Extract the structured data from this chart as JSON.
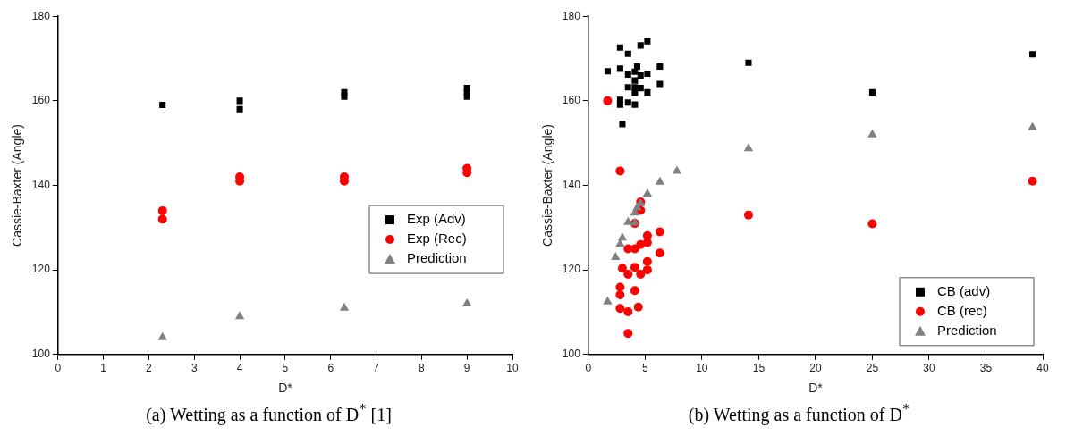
{
  "chart_data": [
    {
      "type": "scatter",
      "xlabel": "D*",
      "ylabel": "Cassie-Baxter (Angle)",
      "xlim": [
        0,
        10
      ],
      "xticks": [
        0,
        1,
        2,
        3,
        4,
        5,
        6,
        7,
        8,
        9,
        10
      ],
      "ylim": [
        100,
        180
      ],
      "yticks": [
        100,
        120,
        140,
        160,
        180
      ],
      "grid": false,
      "legend": "right",
      "annotations": [
        "(a) Wetting as a function of D$^{*}$ [1]"
      ],
      "series": [
        {
          "name": "Exp (Adv)",
          "color": "#000000",
          "marker": "square",
          "x": [
            2.3,
            4,
            4,
            6.3,
            6.3,
            9,
            9,
            9
          ],
          "values": [
            159,
            160,
            158,
            162,
            161,
            163,
            162,
            161
          ]
        },
        {
          "name": "Exp (Rec)",
          "color": "#ff0000",
          "marker": "circle",
          "x": [
            2.3,
            2.3,
            4,
            4,
            6.3,
            6.3,
            9,
            9
          ],
          "values": [
            134,
            132,
            142,
            141,
            142,
            141,
            144,
            143
          ]
        },
        {
          "name": "Prediction",
          "color": "#808080",
          "marker": "triangle",
          "x": [
            2.3,
            4,
            6.3,
            9
          ],
          "values": [
            104,
            109,
            111,
            112
          ]
        }
      ]
    },
    {
      "type": "scatter",
      "xlabel": "D*",
      "ylabel": "Cassie-Baxter (Angle)",
      "xlim": [
        0,
        40
      ],
      "xticks": [
        0,
        5,
        10,
        15,
        20,
        25,
        30,
        35,
        40
      ],
      "ylim": [
        100,
        180
      ],
      "yticks": [
        100,
        120,
        140,
        160,
        180
      ],
      "grid": false,
      "legend": "bottom right",
      "annotations": [
        "(b) Wetting as a function of D$^{*}$"
      ],
      "series": [
        {
          "name": "CB (adv)",
          "color": "#000000",
          "marker": "square",
          "x": [
            1.7,
            2.8,
            2.8,
            3.5,
            4.6,
            5.2,
            2.8,
            2.8,
            3.5,
            4.1,
            3.0,
            3.5,
            4.1,
            4.3,
            4.6,
            5.2,
            6.3,
            6.3,
            3.5,
            4.1,
            4.1,
            4.6,
            5.2,
            4.1,
            14.1,
            25,
            39.1
          ],
          "values": [
            167,
            172.6,
            167.6,
            171.1,
            173.1,
            174.1,
            160.2,
            159.1,
            159.6,
            159.1,
            154.5,
            166.2,
            166.9,
            168.1,
            166,
            166.4,
            168.1,
            164,
            163.2,
            163.2,
            161.9,
            163,
            162,
            164.8,
            169,
            162,
            171
          ]
        },
        {
          "name": "CB (rec)",
          "color": "#ff0000",
          "marker": "circle",
          "x": [
            1.7,
            2.8,
            14.1,
            25,
            39.1,
            4.6,
            4.6,
            4.1,
            3.5,
            4.1,
            4.6,
            5.2,
            5.2,
            6.3,
            6.3,
            3.0,
            4.1,
            3.5,
            4.6,
            5.2,
            5.2,
            2.8,
            2.8,
            4.1,
            2.8,
            3.5,
            4.4,
            3.5
          ],
          "values": [
            160,
            143.4,
            133,
            130.9,
            141,
            136.1,
            134.1,
            131,
            125,
            125,
            126,
            128.1,
            126.5,
            129,
            124,
            120.4,
            120.6,
            119,
            119,
            122,
            120,
            115.9,
            114.1,
            115.1,
            110.9,
            110.1,
            111.2,
            105
          ]
        },
        {
          "name": "Prediction",
          "color": "#808080",
          "marker": "triangle",
          "x": [
            1.7,
            2.4,
            2.8,
            3.0,
            3.5,
            4.1,
            4.1,
            4.3,
            4.6,
            5.2,
            6.3,
            7.8,
            14.1,
            25,
            39.1
          ],
          "values": [
            112.5,
            123,
            126.1,
            127.6,
            131.3,
            131.1,
            133.5,
            134.7,
            135.7,
            138,
            140.8,
            143.4,
            148.7,
            152,
            153.7
          ]
        }
      ]
    }
  ]
}
